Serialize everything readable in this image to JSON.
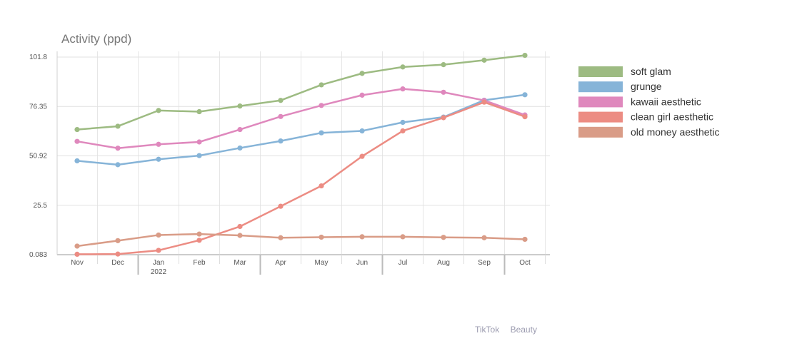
{
  "footer": {
    "source": "TikTok",
    "category": "Beauty"
  },
  "chart_data": {
    "type": "line",
    "title": "Activity (ppd)",
    "xlabel": "",
    "ylabel": "",
    "x": [
      "Nov",
      "Dec",
      "Jan",
      "Feb",
      "Mar",
      "Apr",
      "May",
      "Jun",
      "Jul",
      "Aug",
      "Sep",
      "Oct"
    ],
    "x_year_label": {
      "at": "Jan",
      "text": "2022"
    },
    "yticks": [
      0.083,
      25.5,
      50.92,
      76.35,
      101.8
    ],
    "ytick_labels": [
      "0.083",
      "25.5",
      "50.92",
      "76.35",
      "101.8"
    ],
    "ylim": [
      0.083,
      101.8
    ],
    "grid": true,
    "legend": "right",
    "series": [
      {
        "name": "soft glam",
        "color": "#9dbb82",
        "values": [
          64.5,
          66.2,
          74.3,
          73.7,
          76.6,
          79.5,
          87.5,
          93.4,
          96.7,
          97.9,
          100.2,
          102.7
        ]
      },
      {
        "name": "grunge",
        "color": "#86b4d8",
        "values": [
          48.4,
          46.4,
          49.2,
          51.1,
          55.0,
          58.6,
          62.8,
          63.8,
          68.2,
          70.9,
          79.6,
          82.4
        ]
      },
      {
        "name": "kawaii aesthetic",
        "color": "#df88bd",
        "values": [
          58.4,
          54.9,
          56.9,
          58.1,
          64.5,
          71.2,
          76.9,
          82.2,
          85.4,
          83.7,
          79.5,
          72.0
        ]
      },
      {
        "name": "clean girl aesthetic",
        "color": "#ec8c83",
        "values": [
          0.3,
          0.4,
          2.3,
          7.5,
          14.6,
          25.0,
          35.5,
          50.7,
          63.8,
          70.6,
          78.6,
          71.1
        ]
      },
      {
        "name": "old money aesthetic",
        "color": "#d99c87",
        "values": [
          4.5,
          7.3,
          10.2,
          10.7,
          10.0,
          8.8,
          9.1,
          9.3,
          9.3,
          9.0,
          8.8,
          8.0
        ]
      }
    ]
  }
}
